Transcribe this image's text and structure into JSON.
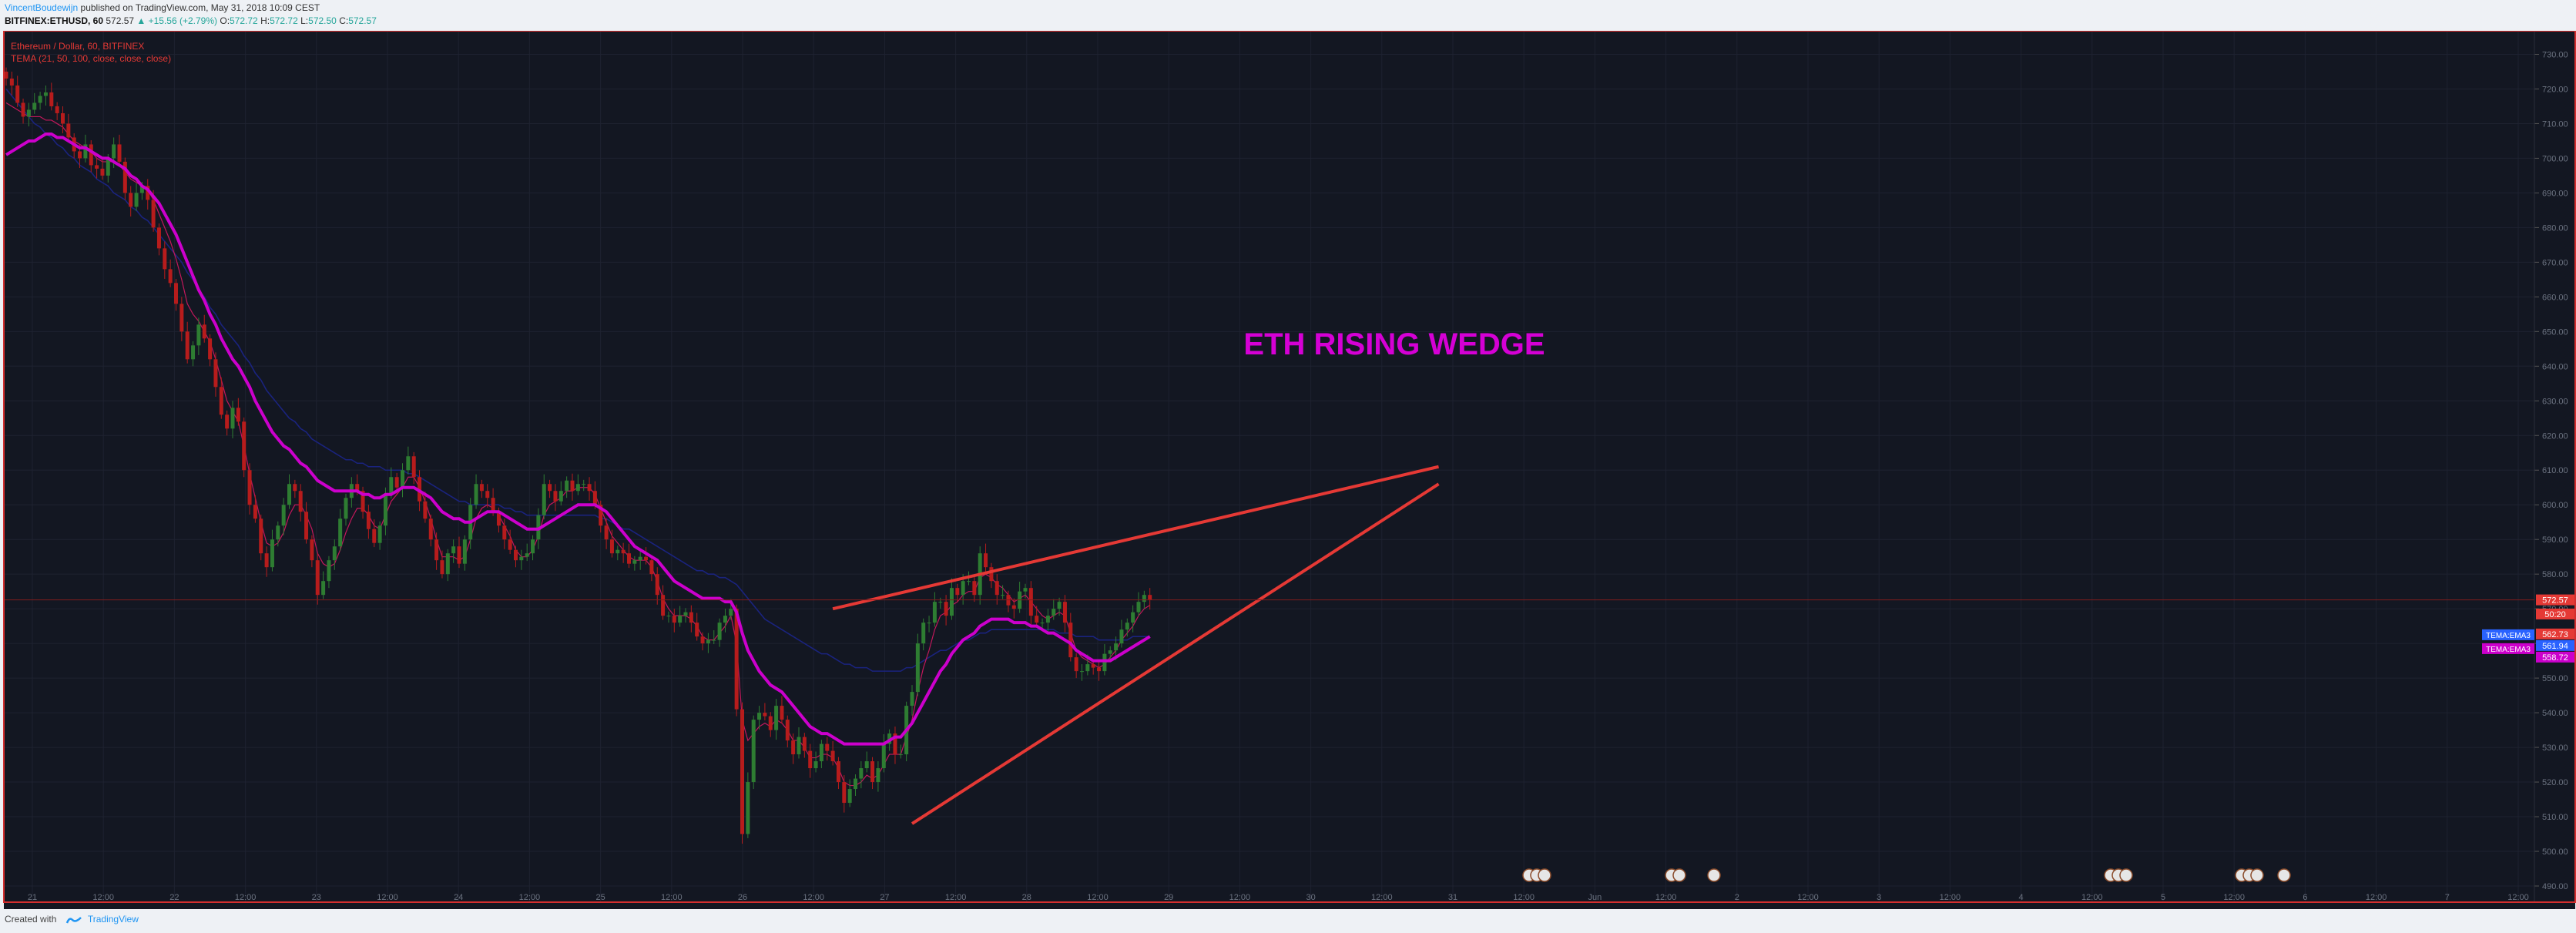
{
  "header": {
    "author": "VincentBoudewijn",
    "published": "published on TradingView.com, May 31, 2018 10:09 CEST",
    "symbol": "BITFINEX:ETHUSD, 60",
    "last": "572.57",
    "change": "▲ +15.56 (+2.79%)",
    "o_label": "O:",
    "o": "572.72",
    "h_label": "H:",
    "h": "572.72",
    "l_label": "L:",
    "l": "572.50",
    "c_label": "C:",
    "c": "572.57"
  },
  "footer": {
    "created": "Created with",
    "brand": "TradingView"
  },
  "colors": {
    "background": "#131722",
    "grid": "#1e2230",
    "frame": "#d32f2f",
    "up": "#2e7d32",
    "down": "#b71c1c",
    "tema1": "#c2185b",
    "tema2": "#cc00cc",
    "tema3": "#1a237e",
    "trendline": "#e53935",
    "annotation": "#d500d5"
  },
  "chart_data": {
    "type": "candlestick",
    "title": "Ethereum / Dollar, 60, BITFINEX",
    "indicator_label": "TEMA (21, 50, 100, close, close, close)",
    "annotation": "ETH RISING WEDGE",
    "ylim": [
      490,
      735
    ],
    "y_ticks": [
      "730.00",
      "720.00",
      "710.00",
      "700.00",
      "690.00",
      "680.00",
      "670.00",
      "660.00",
      "650.00",
      "640.00",
      "630.00",
      "620.00",
      "610.00",
      "600.00",
      "590.00",
      "580.00",
      "570.00",
      "560.00",
      "550.00",
      "540.00",
      "530.00",
      "520.00",
      "510.00",
      "500.00",
      "490.00"
    ],
    "x_ticks": [
      "21",
      "12:00",
      "22",
      "12:00",
      "23",
      "12:00",
      "24",
      "12:00",
      "25",
      "12:00",
      "26",
      "12:00",
      "27",
      "12:00",
      "28",
      "12:00",
      "29",
      "12:00",
      "30",
      "12:00",
      "31",
      "12:00",
      "Jun",
      "12:00",
      "2",
      "12:00",
      "3",
      "12:00",
      "4",
      "12:00",
      "5",
      "12:00",
      "6",
      "12:00",
      "7",
      "12:00"
    ],
    "price_labels": [
      {
        "text": "572.57",
        "value": 572.57,
        "color": "#e53935"
      },
      {
        "text": "50:20",
        "value": 568.5,
        "color": "#e53935"
      },
      {
        "text": "562.73",
        "value": 562.73,
        "color": "#e53935"
      },
      {
        "text": "561.94",
        "value": 561.94,
        "color": "#2962ff"
      },
      {
        "text": "558.72",
        "value": 558.72,
        "color": "#cc00cc"
      }
    ],
    "tema_tags": [
      {
        "text": "TEMA:EMA3",
        "value": 562.5,
        "color": "#2962ff"
      },
      {
        "text": "TEMA:EMA3",
        "value": 558.5,
        "color": "#cc00cc"
      }
    ],
    "close": [
      723,
      721,
      716,
      712,
      714,
      716,
      718,
      719,
      715,
      713,
      710,
      706,
      702,
      700,
      704,
      698,
      697,
      695,
      700,
      704,
      699,
      690,
      686,
      690,
      692,
      688,
      680,
      674,
      668,
      664,
      658,
      650,
      642,
      646,
      652,
      648,
      642,
      634,
      626,
      622,
      628,
      624,
      610,
      600,
      596,
      586,
      582,
      590,
      594,
      600,
      606,
      604,
      598,
      590,
      584,
      574,
      578,
      584,
      588,
      596,
      602,
      606,
      604,
      598,
      593,
      589,
      594,
      603,
      608,
      605,
      610,
      614,
      608,
      601,
      596,
      590,
      584,
      580,
      586,
      588,
      583,
      590,
      600,
      606,
      604,
      602,
      598,
      594,
      590,
      587,
      584,
      585,
      586,
      590,
      597,
      606,
      604,
      601,
      604,
      607,
      604,
      606,
      606,
      604,
      600,
      594,
      590,
      586,
      587,
      586,
      583,
      584,
      585,
      584,
      580,
      574,
      568,
      568,
      566,
      568,
      569,
      566,
      562,
      560,
      561,
      561,
      566,
      568,
      570,
      541,
      505,
      520,
      538,
      540,
      539,
      535,
      542,
      538,
      532,
      528,
      533,
      529,
      524,
      526,
      531,
      529,
      526,
      520,
      514,
      518,
      521,
      524,
      526,
      520,
      524,
      531,
      534,
      528,
      528,
      542,
      546,
      560,
      566,
      566,
      572,
      572,
      568,
      576,
      574,
      578,
      578,
      574,
      586,
      582,
      578,
      574,
      574,
      571,
      570,
      575,
      576,
      568,
      566,
      566,
      568,
      570,
      572,
      566,
      556,
      552,
      552,
      554,
      553,
      552,
      557,
      558,
      560,
      564,
      566,
      569,
      572,
      574,
      572.57
    ],
    "tema_21": [
      716,
      715,
      714,
      713,
      712,
      712,
      712,
      711,
      711,
      710,
      709,
      707,
      705,
      704,
      703,
      702,
      700,
      699,
      699,
      699,
      698,
      696,
      694,
      693,
      692,
      691,
      688,
      684,
      680,
      676,
      671,
      665,
      658,
      655,
      653,
      650,
      647,
      642,
      636,
      630,
      627,
      624,
      617,
      609,
      602,
      595,
      589,
      588,
      589,
      592,
      597,
      600,
      600,
      597,
      593,
      586,
      583,
      582,
      583,
      587,
      592,
      596,
      599,
      599,
      597,
      594,
      593,
      597,
      601,
      603,
      605,
      608,
      608,
      605,
      601,
      596,
      590,
      585,
      585,
      585,
      584,
      585,
      590,
      596,
      599,
      600,
      599,
      597,
      594,
      591,
      587,
      585,
      585,
      587,
      591,
      597,
      600,
      601,
      602,
      604,
      604,
      605,
      605,
      605,
      603,
      599,
      595,
      591,
      589,
      587,
      585,
      584,
      584,
      584,
      582,
      578,
      573,
      570,
      568,
      568,
      568,
      567,
      565,
      562,
      561,
      561,
      563,
      565,
      568,
      560,
      538,
      532,
      534,
      536,
      537,
      536,
      538,
      537,
      535,
      532,
      532,
      530,
      527,
      527,
      528,
      528,
      527,
      524,
      520,
      519,
      519,
      520,
      522,
      521,
      522,
      525,
      528,
      528,
      528,
      533,
      538,
      546,
      553,
      558,
      564,
      568,
      569,
      571,
      572,
      574,
      575,
      575,
      579,
      580,
      579,
      577,
      576,
      574,
      572,
      573,
      574,
      572,
      570,
      568,
      567,
      568,
      569,
      568,
      563,
      558,
      556,
      555,
      554,
      553,
      554,
      556,
      558,
      561,
      563,
      565,
      568,
      570,
      571
    ],
    "tema_50": [
      701,
      702,
      703,
      704,
      705,
      705,
      706,
      707,
      707,
      706,
      706,
      705,
      704,
      703,
      703,
      702,
      701,
      700,
      700,
      699,
      698,
      697,
      695,
      694,
      692,
      691,
      689,
      687,
      684,
      681,
      678,
      674,
      670,
      666,
      662,
      659,
      655,
      652,
      648,
      645,
      642,
      640,
      637,
      634,
      630,
      627,
      624,
      621,
      619,
      617,
      616,
      614,
      612,
      611,
      609,
      607,
      606,
      605,
      604,
      604,
      604,
      604,
      604,
      603,
      603,
      602,
      602,
      603,
      603,
      604,
      605,
      605,
      605,
      604,
      603,
      602,
      600,
      598,
      597,
      596,
      596,
      595,
      595,
      596,
      597,
      598,
      598,
      598,
      597,
      596,
      595,
      594,
      593,
      593,
      593,
      594,
      595,
      596,
      597,
      598,
      599,
      600,
      600,
      600,
      600,
      599,
      598,
      596,
      594,
      592,
      590,
      588,
      587,
      586,
      585,
      584,
      582,
      580,
      578,
      577,
      576,
      575,
      574,
      573,
      573,
      573,
      573,
      572,
      572,
      569,
      563,
      558,
      555,
      552,
      550,
      548,
      547,
      546,
      544,
      542,
      540,
      538,
      536,
      535,
      534,
      534,
      533,
      532,
      531,
      531,
      531,
      531,
      531,
      531,
      531,
      531,
      532,
      533,
      533,
      535,
      537,
      540,
      543,
      546,
      549,
      552,
      554,
      557,
      559,
      561,
      562,
      563,
      565,
      566,
      567,
      567,
      567,
      567,
      566,
      566,
      566,
      565,
      565,
      564,
      563,
      563,
      562,
      561,
      560,
      558,
      557,
      556,
      555,
      555,
      555,
      555,
      556,
      557,
      558,
      559,
      560,
      561,
      562
    ],
    "tema_100": [
      720,
      718,
      716,
      714,
      712,
      710,
      709,
      707,
      706,
      704,
      703,
      701,
      700,
      698,
      697,
      696,
      694,
      693,
      692,
      690,
      689,
      688,
      686,
      685,
      683,
      682,
      680,
      678,
      676,
      674,
      672,
      670,
      667,
      665,
      662,
      660,
      657,
      655,
      652,
      650,
      648,
      646,
      643,
      641,
      638,
      636,
      633,
      631,
      629,
      627,
      625,
      624,
      622,
      621,
      619,
      618,
      617,
      616,
      615,
      614,
      613,
      613,
      612,
      612,
      611,
      611,
      611,
      610,
      610,
      610,
      610,
      609,
      609,
      608,
      607,
      606,
      605,
      604,
      603,
      602,
      601,
      601,
      600,
      600,
      600,
      600,
      600,
      600,
      599,
      599,
      598,
      598,
      597,
      597,
      597,
      597,
      597,
      597,
      597,
      597,
      597,
      597,
      597,
      597,
      597,
      596,
      596,
      595,
      594,
      593,
      593,
      592,
      591,
      590,
      589,
      588,
      587,
      586,
      585,
      584,
      583,
      582,
      581,
      581,
      580,
      580,
      579,
      579,
      578,
      577,
      575,
      573,
      571,
      569,
      567,
      566,
      565,
      564,
      563,
      562,
      561,
      560,
      559,
      558,
      557,
      557,
      556,
      555,
      554,
      554,
      553,
      553,
      553,
      552,
      552,
      552,
      552,
      552,
      552,
      553,
      553,
      554,
      555,
      556,
      557,
      558,
      558,
      559,
      560,
      561,
      561,
      562,
      563,
      563,
      564,
      564,
      564,
      564,
      564,
      564,
      564,
      564,
      564,
      564,
      564,
      564,
      563,
      563,
      563,
      562,
      562,
      562,
      562,
      561,
      561,
      561,
      561,
      561,
      561,
      562,
      562,
      562,
      562
    ],
    "wedge_upper": {
      "x": [
        146,
        253
      ],
      "y": [
        570,
        611
      ]
    },
    "wedge_lower": {
      "x": [
        160,
        253
      ],
      "y": [
        508,
        606
      ]
    },
    "current_price": 572.57
  }
}
